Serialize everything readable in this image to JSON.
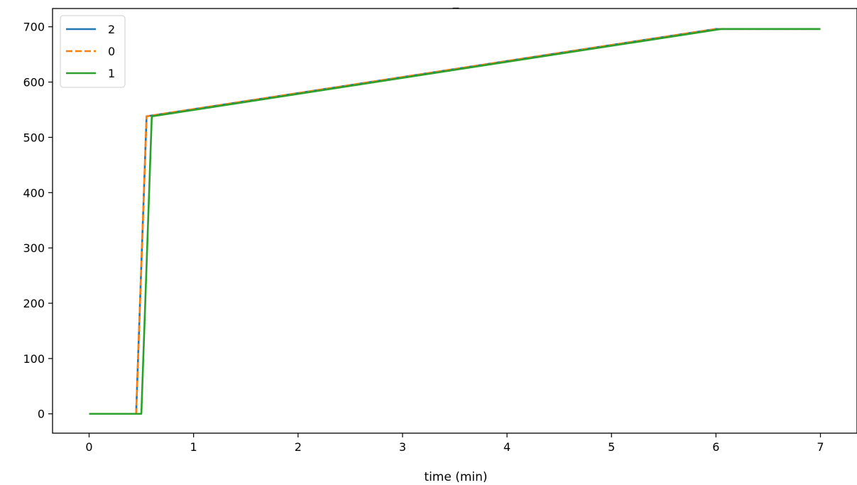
{
  "chart_data": {
    "type": "line",
    "title": "_",
    "xlabel": "time (min)",
    "ylabel": "",
    "xlim": [
      -0.35,
      7.35
    ],
    "ylim": [
      -35,
      733
    ],
    "xticks": [
      0,
      1,
      2,
      3,
      4,
      5,
      6,
      7
    ],
    "yticks": [
      0,
      100,
      200,
      300,
      400,
      500,
      600,
      700
    ],
    "grid": false,
    "legend_position": "top-left",
    "series": [
      {
        "name": "2",
        "color": "#1f77b4",
        "style": "solid",
        "x": [
          0,
          0.45,
          0.55,
          6.0,
          7.0
        ],
        "y": [
          0,
          0,
          538,
          696,
          696
        ]
      },
      {
        "name": "0",
        "color": "#ff7f0e",
        "style": "dashed",
        "x": [
          0,
          0.45,
          0.55,
          6.0,
          7.0
        ],
        "y": [
          0,
          0,
          538,
          696,
          696
        ]
      },
      {
        "name": "1",
        "color": "#2ca02c",
        "style": "solid",
        "x": [
          0,
          0.5,
          0.6,
          6.05,
          7.0
        ],
        "y": [
          0,
          0,
          538,
          696,
          696
        ]
      }
    ]
  }
}
